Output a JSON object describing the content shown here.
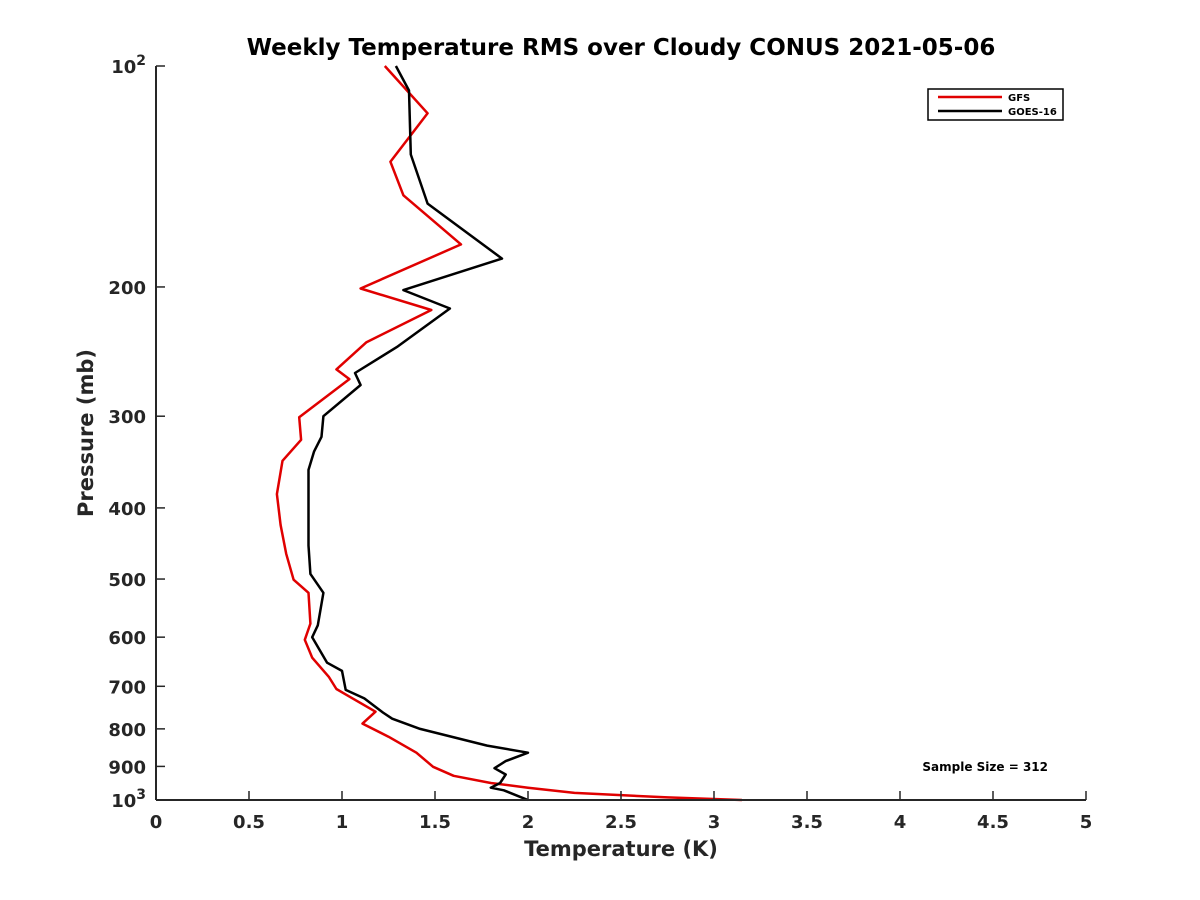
{
  "chart_data": {
    "type": "line",
    "title": "Weekly Temperature RMS over Cloudy CONUS 2021-05-06",
    "xlabel": "Temperature (K)",
    "ylabel": "Pressure (mb)",
    "xlim": [
      0,
      5
    ],
    "ylim": [
      1000,
      100
    ],
    "yscale": "log",
    "y_reversed": true,
    "grid": false,
    "legend_position": "top-right",
    "x_ticks": [
      {
        "value": 0,
        "label": "0"
      },
      {
        "value": 0.5,
        "label": "0.5"
      },
      {
        "value": 1,
        "label": "1"
      },
      {
        "value": 1.5,
        "label": "1.5"
      },
      {
        "value": 2,
        "label": "2"
      },
      {
        "value": 2.5,
        "label": "2.5"
      },
      {
        "value": 3,
        "label": "3"
      },
      {
        "value": 3.5,
        "label": "3.5"
      },
      {
        "value": 4,
        "label": "4"
      },
      {
        "value": 4.5,
        "label": "4.5"
      },
      {
        "value": 5,
        "label": "5"
      }
    ],
    "y_ticks": [
      {
        "value": 100,
        "label": "10",
        "sup": "2"
      },
      {
        "value": 200,
        "label": "200"
      },
      {
        "value": 300,
        "label": "300"
      },
      {
        "value": 400,
        "label": "400"
      },
      {
        "value": 500,
        "label": "500"
      },
      {
        "value": 600,
        "label": "600"
      },
      {
        "value": 700,
        "label": "700"
      },
      {
        "value": 800,
        "label": "800"
      },
      {
        "value": 900,
        "label": "900"
      },
      {
        "value": 1000,
        "label": "10",
        "sup": "3"
      }
    ],
    "annotation": "Sample Size = 312",
    "series": [
      {
        "name": "GFS",
        "color": "#e00000",
        "points": [
          [
            1.23,
            100
          ],
          [
            1.46,
            116
          ],
          [
            1.26,
            135
          ],
          [
            1.33,
            150
          ],
          [
            1.64,
            175
          ],
          [
            1.1,
            201
          ],
          [
            1.48,
            215
          ],
          [
            1.13,
            238
          ],
          [
            0.97,
            259
          ],
          [
            1.04,
            267
          ],
          [
            0.77,
            301
          ],
          [
            0.78,
            323
          ],
          [
            0.68,
            345
          ],
          [
            0.65,
            383
          ],
          [
            0.67,
            422
          ],
          [
            0.7,
            462
          ],
          [
            0.74,
            501
          ],
          [
            0.82,
            522
          ],
          [
            0.83,
            575
          ],
          [
            0.8,
            605
          ],
          [
            0.84,
            640
          ],
          [
            0.93,
            680
          ],
          [
            0.97,
            706
          ],
          [
            1.02,
            718
          ],
          [
            1.18,
            758
          ],
          [
            1.11,
            787
          ],
          [
            1.25,
            820
          ],
          [
            1.4,
            862
          ],
          [
            1.49,
            901
          ],
          [
            1.6,
            927
          ],
          [
            1.8,
            948
          ],
          [
            2.0,
            962
          ],
          [
            2.25,
            978
          ],
          [
            2.75,
            992
          ],
          [
            3.15,
            1000
          ]
        ]
      },
      {
        "name": "GOES-16",
        "color": "#000000",
        "points": [
          [
            1.29,
            100
          ],
          [
            1.36,
            108
          ],
          [
            1.37,
            132
          ],
          [
            1.46,
            154
          ],
          [
            1.86,
            183
          ],
          [
            1.33,
            202
          ],
          [
            1.58,
            214
          ],
          [
            1.3,
            241
          ],
          [
            1.07,
            262
          ],
          [
            1.1,
            272
          ],
          [
            0.9,
            300
          ],
          [
            0.89,
            320
          ],
          [
            0.85,
            335
          ],
          [
            0.82,
            355
          ],
          [
            0.82,
            450
          ],
          [
            0.83,
            492
          ],
          [
            0.9,
            522
          ],
          [
            0.87,
            578
          ],
          [
            0.84,
            600
          ],
          [
            0.92,
            650
          ],
          [
            1.0,
            667
          ],
          [
            1.02,
            708
          ],
          [
            1.12,
            727
          ],
          [
            1.22,
            760
          ],
          [
            1.27,
            775
          ],
          [
            1.42,
            800
          ],
          [
            1.78,
            843
          ],
          [
            2.0,
            862
          ],
          [
            1.88,
            885
          ],
          [
            1.82,
            905
          ],
          [
            1.88,
            923
          ],
          [
            1.85,
            948
          ],
          [
            1.8,
            962
          ],
          [
            1.87,
            970
          ],
          [
            1.97,
            993
          ],
          [
            2.0,
            1000
          ]
        ]
      }
    ]
  }
}
